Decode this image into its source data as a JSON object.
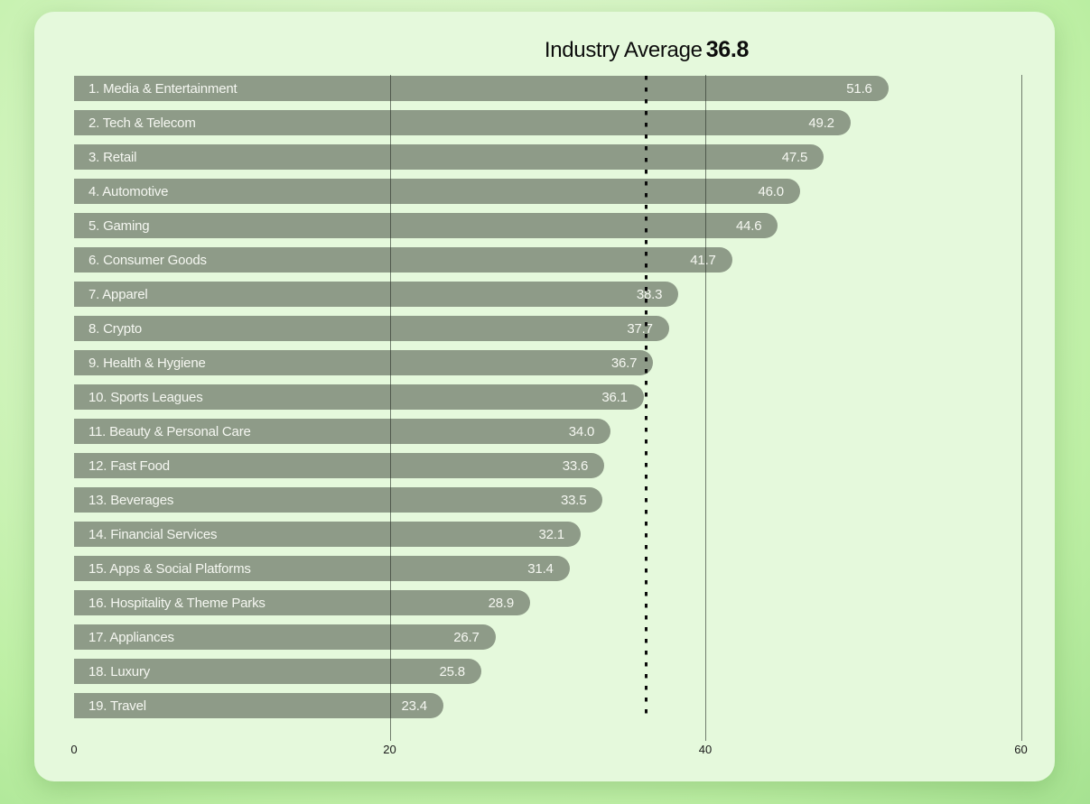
{
  "title": {
    "label": "Industry Average",
    "value": "36.8"
  },
  "chart_data": {
    "type": "bar",
    "orientation": "horizontal",
    "title": "Industry Average 36.8",
    "average": 36.8,
    "categories": [
      "Media & Entertainment",
      "Tech & Telecom",
      "Retail",
      "Automotive",
      "Gaming",
      "Consumer Goods",
      "Apparel",
      "Crypto",
      "Health & Hygiene",
      "Sports Leagues",
      "Beauty & Personal Care",
      "Fast Food",
      "Beverages",
      "Financial Services",
      "Apps & Social Platforms",
      "Hospitality & Theme Parks",
      "Appliances",
      "Luxury",
      "Travel"
    ],
    "display_labels": [
      "1. Media & Entertainment",
      "2. Tech & Telecom",
      "3. Retail",
      "4. Automotive",
      "5. Gaming",
      "6. Consumer Goods",
      "7. Apparel",
      "8. Crypto",
      "9. Health & Hygiene",
      "10. Sports Leagues",
      "11. Beauty & Personal Care",
      "12. Fast Food",
      "13. Beverages",
      "14. Financial Services",
      "15. Apps & Social Platforms",
      "16. Hospitality & Theme Parks",
      "17. Appliances",
      "18. Luxury",
      "19. Travel"
    ],
    "values": [
      51.6,
      49.2,
      47.5,
      46.0,
      44.6,
      41.7,
      38.3,
      37.7,
      36.7,
      36.1,
      34.0,
      33.6,
      33.5,
      32.1,
      31.4,
      28.9,
      26.7,
      25.8,
      23.4
    ],
    "value_labels": [
      "51.6",
      "49.2",
      "47.5",
      "46.0",
      "44.6",
      "41.7",
      "38.3",
      "37.7",
      "36.7",
      "36.1",
      "34.0",
      "33.6",
      "33.5",
      "32.1",
      "31.4",
      "28.9",
      "26.7",
      "25.8",
      "23.4"
    ],
    "xlim": [
      0,
      60
    ],
    "x_ticks": [
      "0",
      "20",
      "40",
      "60"
    ],
    "x_tick_values": [
      0,
      20,
      40,
      60
    ],
    "grid": "vertical gridlines at 20, 40, 60",
    "legend": "none",
    "average_line_style": "dotted vertical line at industry average"
  },
  "colors": {
    "bar": "#8e9b88",
    "bar_text": "#f5f7f1",
    "card_background": "#e5f9dc",
    "page_background_center": "#e6fad9",
    "page_background_edge": "#a6e291",
    "gridline": "#2a3028",
    "average_line": "#0a0a0a",
    "title_text": "#0d0d0d",
    "tick_text": "#1a1a1a"
  }
}
